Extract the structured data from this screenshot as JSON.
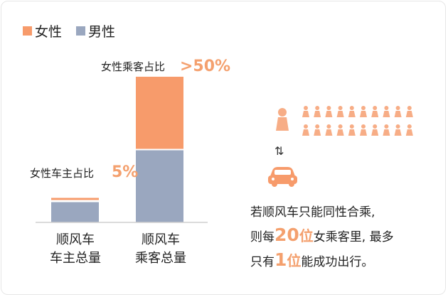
{
  "colors": {
    "female": "#f79b6b",
    "male": "#9aa7bf",
    "baseline": "#cfcfcf",
    "highlight": "#f4a06e",
    "person": "#f7ad86"
  },
  "legend": [
    {
      "label": "女性",
      "color": "#f79b6b"
    },
    {
      "label": "男性",
      "color": "#9aa7bf"
    }
  ],
  "chart_data": {
    "type": "bar",
    "stacked": true,
    "categories": [
      "顺风车\n车主总量",
      "顺风车\n乘客总量"
    ],
    "series": [
      {
        "name": "男性",
        "values": [
          95,
          50
        ]
      },
      {
        "name": "女性",
        "values": [
          5,
          50
        ]
      }
    ],
    "annotations": [
      {
        "category": 0,
        "label": "女性车主占比",
        "value_text": "5%"
      },
      {
        "category": 1,
        "label": "女性乘客占比",
        "value_text": ">50%"
      }
    ]
  },
  "infographic": {
    "swap_icon": "⇅",
    "caption_lines": [
      [
        "若顺风车只能同性合乘,"
      ],
      [
        "则每",
        "20位",
        "女乘客里, 最多"
      ],
      [
        "只有",
        "1位",
        "能成功出行。"
      ]
    ],
    "caption_parts": {
      "line1": "若顺风车只能同性合乘,",
      "line2_pre": "则每",
      "line2_num": "20",
      "line2_unit": "位",
      "line2_post": "女乘客里, 最多",
      "line3_pre": "只有",
      "line3_num": "1",
      "line3_unit": "位",
      "line3_post": "能成功出行。"
    },
    "female_passengers_count": 20,
    "driver_icon": "car-icon",
    "passenger_icon": "woman-icon"
  }
}
